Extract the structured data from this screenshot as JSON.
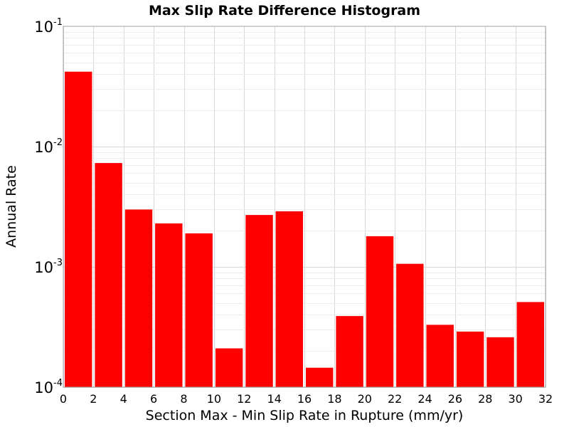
{
  "chart_data": {
    "type": "bar",
    "title": "Max Slip Rate Difference Histogram",
    "xlabel": "Section Max - Min Slip Rate in Rupture (mm/yr)",
    "ylabel": "Annual Rate",
    "yscale": "log",
    "xlim": [
      0,
      32
    ],
    "ylim": [
      0.0001,
      0.1
    ],
    "grid": true,
    "bin_width": 2,
    "x_ticks": [
      "0",
      "2",
      "4",
      "6",
      "8",
      "10",
      "12",
      "14",
      "16",
      "18",
      "20",
      "22",
      "24",
      "26",
      "28",
      "30",
      "32"
    ],
    "y_ticks": [
      {
        "base": "10",
        "exp": "-1",
        "value": 0.1
      },
      {
        "base": "10",
        "exp": "-2",
        "value": 0.01
      },
      {
        "base": "10",
        "exp": "-3",
        "value": 0.001
      },
      {
        "base": "10",
        "exp": "-4",
        "value": 0.0001
      }
    ],
    "bar_color": "#ff0000",
    "bins": [
      {
        "x_start": 0,
        "x_end": 2,
        "value": 0.042
      },
      {
        "x_start": 2,
        "x_end": 4,
        "value": 0.0073
      },
      {
        "x_start": 4,
        "x_end": 6,
        "value": 0.003
      },
      {
        "x_start": 6,
        "x_end": 8,
        "value": 0.0023
      },
      {
        "x_start": 8,
        "x_end": 10,
        "value": 0.0019
      },
      {
        "x_start": 10,
        "x_end": 12,
        "value": 0.00021
      },
      {
        "x_start": 12,
        "x_end": 14,
        "value": 0.0027
      },
      {
        "x_start": 14,
        "x_end": 16,
        "value": 0.0029
      },
      {
        "x_start": 16,
        "x_end": 18,
        "value": 0.000145
      },
      {
        "x_start": 18,
        "x_end": 20,
        "value": 0.00039
      },
      {
        "x_start": 20,
        "x_end": 22,
        "value": 0.0018
      },
      {
        "x_start": 22,
        "x_end": 24,
        "value": 0.00106
      },
      {
        "x_start": 24,
        "x_end": 26,
        "value": 0.00033
      },
      {
        "x_start": 26,
        "x_end": 28,
        "value": 0.00029
      },
      {
        "x_start": 28,
        "x_end": 30,
        "value": 0.00026
      },
      {
        "x_start": 30,
        "x_end": 32,
        "value": 0.00051
      }
    ]
  }
}
